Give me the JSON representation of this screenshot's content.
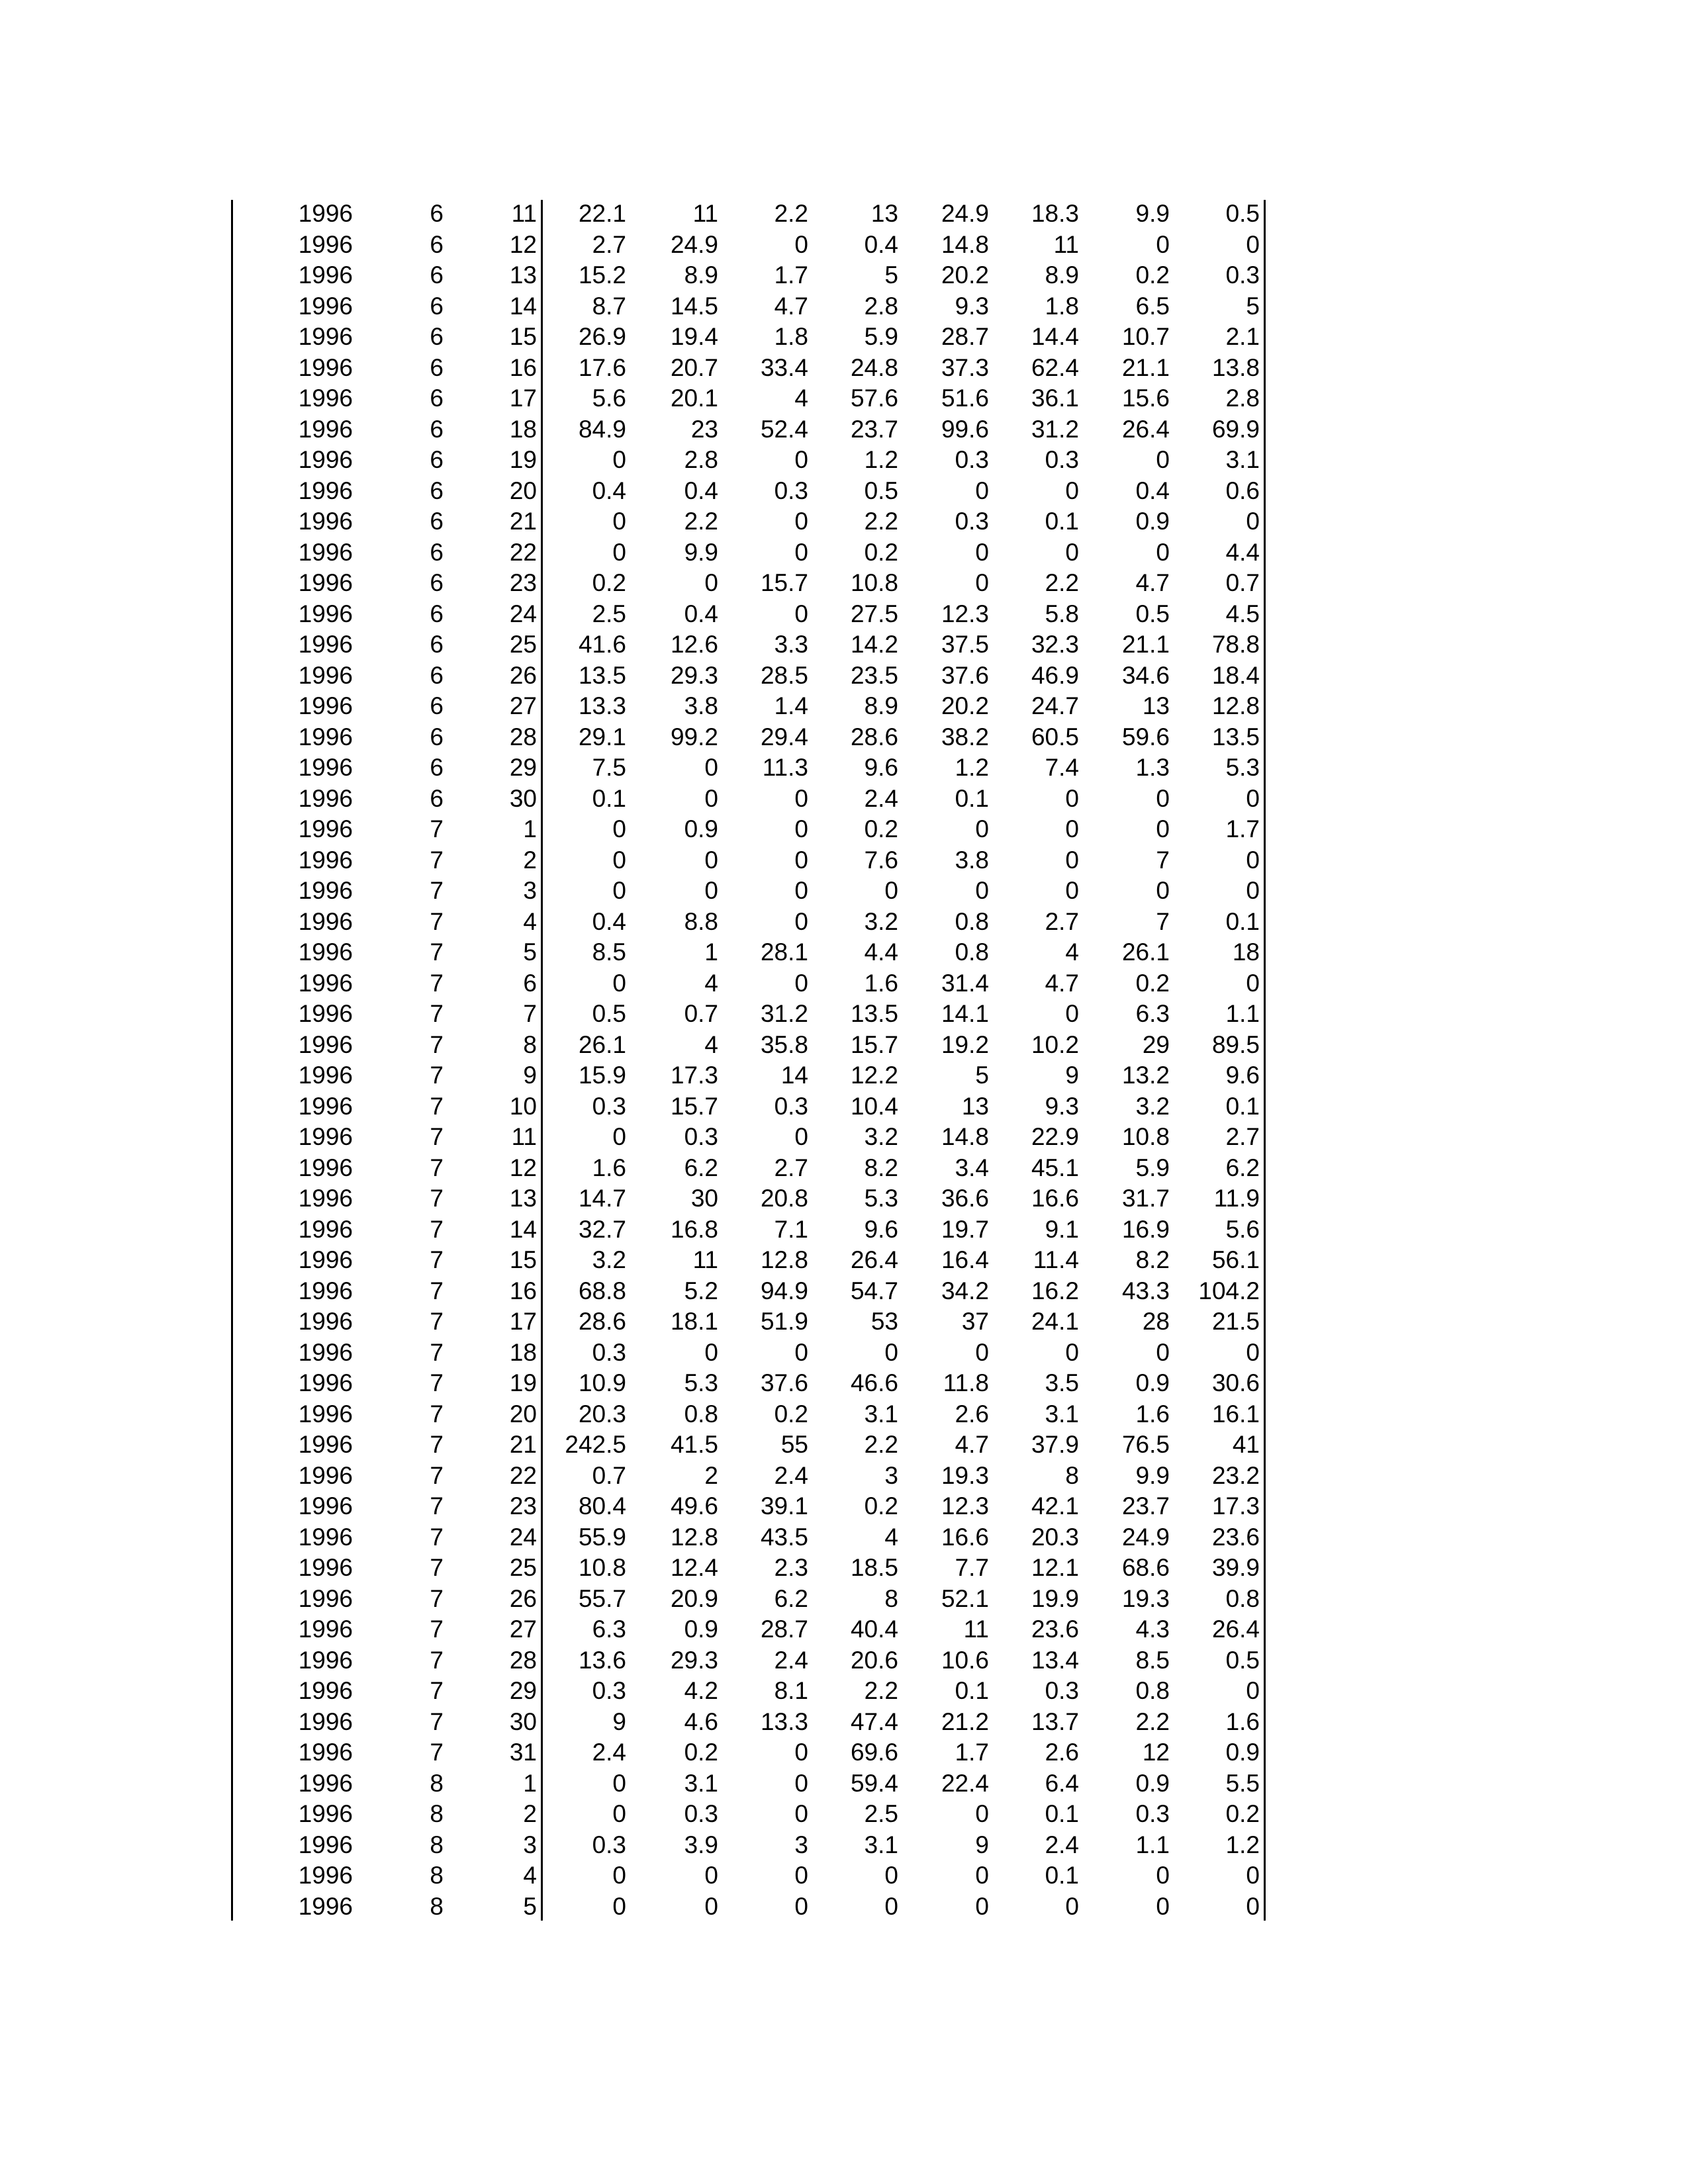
{
  "table": {
    "rows": [
      [
        "1996",
        "6",
        "11",
        "22.1",
        "11",
        "2.2",
        "13",
        "24.9",
        "18.3",
        "9.9",
        "0.5"
      ],
      [
        "1996",
        "6",
        "12",
        "2.7",
        "24.9",
        "0",
        "0.4",
        "14.8",
        "11",
        "0",
        "0"
      ],
      [
        "1996",
        "6",
        "13",
        "15.2",
        "8.9",
        "1.7",
        "5",
        "20.2",
        "8.9",
        "0.2",
        "0.3"
      ],
      [
        "1996",
        "6",
        "14",
        "8.7",
        "14.5",
        "4.7",
        "2.8",
        "9.3",
        "1.8",
        "6.5",
        "5"
      ],
      [
        "1996",
        "6",
        "15",
        "26.9",
        "19.4",
        "1.8",
        "5.9",
        "28.7",
        "14.4",
        "10.7",
        "2.1"
      ],
      [
        "1996",
        "6",
        "16",
        "17.6",
        "20.7",
        "33.4",
        "24.8",
        "37.3",
        "62.4",
        "21.1",
        "13.8"
      ],
      [
        "1996",
        "6",
        "17",
        "5.6",
        "20.1",
        "4",
        "57.6",
        "51.6",
        "36.1",
        "15.6",
        "2.8"
      ],
      [
        "1996",
        "6",
        "18",
        "84.9",
        "23",
        "52.4",
        "23.7",
        "99.6",
        "31.2",
        "26.4",
        "69.9"
      ],
      [
        "1996",
        "6",
        "19",
        "0",
        "2.8",
        "0",
        "1.2",
        "0.3",
        "0.3",
        "0",
        "3.1"
      ],
      [
        "1996",
        "6",
        "20",
        "0.4",
        "0.4",
        "0.3",
        "0.5",
        "0",
        "0",
        "0.4",
        "0.6"
      ],
      [
        "1996",
        "6",
        "21",
        "0",
        "2.2",
        "0",
        "2.2",
        "0.3",
        "0.1",
        "0.9",
        "0"
      ],
      [
        "1996",
        "6",
        "22",
        "0",
        "9.9",
        "0",
        "0.2",
        "0",
        "0",
        "0",
        "4.4"
      ],
      [
        "1996",
        "6",
        "23",
        "0.2",
        "0",
        "15.7",
        "10.8",
        "0",
        "2.2",
        "4.7",
        "0.7"
      ],
      [
        "1996",
        "6",
        "24",
        "2.5",
        "0.4",
        "0",
        "27.5",
        "12.3",
        "5.8",
        "0.5",
        "4.5"
      ],
      [
        "1996",
        "6",
        "25",
        "41.6",
        "12.6",
        "3.3",
        "14.2",
        "37.5",
        "32.3",
        "21.1",
        "78.8"
      ],
      [
        "1996",
        "6",
        "26",
        "13.5",
        "29.3",
        "28.5",
        "23.5",
        "37.6",
        "46.9",
        "34.6",
        "18.4"
      ],
      [
        "1996",
        "6",
        "27",
        "13.3",
        "3.8",
        "1.4",
        "8.9",
        "20.2",
        "24.7",
        "13",
        "12.8"
      ],
      [
        "1996",
        "6",
        "28",
        "29.1",
        "99.2",
        "29.4",
        "28.6",
        "38.2",
        "60.5",
        "59.6",
        "13.5"
      ],
      [
        "1996",
        "6",
        "29",
        "7.5",
        "0",
        "11.3",
        "9.6",
        "1.2",
        "7.4",
        "1.3",
        "5.3"
      ],
      [
        "1996",
        "6",
        "30",
        "0.1",
        "0",
        "0",
        "2.4",
        "0.1",
        "0",
        "0",
        "0"
      ],
      [
        "1996",
        "7",
        "1",
        "0",
        "0.9",
        "0",
        "0.2",
        "0",
        "0",
        "0",
        "1.7"
      ],
      [
        "1996",
        "7",
        "2",
        "0",
        "0",
        "0",
        "7.6",
        "3.8",
        "0",
        "7",
        "0"
      ],
      [
        "1996",
        "7",
        "3",
        "0",
        "0",
        "0",
        "0",
        "0",
        "0",
        "0",
        "0"
      ],
      [
        "1996",
        "7",
        "4",
        "0.4",
        "8.8",
        "0",
        "3.2",
        "0.8",
        "2.7",
        "7",
        "0.1"
      ],
      [
        "1996",
        "7",
        "5",
        "8.5",
        "1",
        "28.1",
        "4.4",
        "0.8",
        "4",
        "26.1",
        "18"
      ],
      [
        "1996",
        "7",
        "6",
        "0",
        "4",
        "0",
        "1.6",
        "31.4",
        "4.7",
        "0.2",
        "0"
      ],
      [
        "1996",
        "7",
        "7",
        "0.5",
        "0.7",
        "31.2",
        "13.5",
        "14.1",
        "0",
        "6.3",
        "1.1"
      ],
      [
        "1996",
        "7",
        "8",
        "26.1",
        "4",
        "35.8",
        "15.7",
        "19.2",
        "10.2",
        "29",
        "89.5"
      ],
      [
        "1996",
        "7",
        "9",
        "15.9",
        "17.3",
        "14",
        "12.2",
        "5",
        "9",
        "13.2",
        "9.6"
      ],
      [
        "1996",
        "7",
        "10",
        "0.3",
        "15.7",
        "0.3",
        "10.4",
        "13",
        "9.3",
        "3.2",
        "0.1"
      ],
      [
        "1996",
        "7",
        "11",
        "0",
        "0.3",
        "0",
        "3.2",
        "14.8",
        "22.9",
        "10.8",
        "2.7"
      ],
      [
        "1996",
        "7",
        "12",
        "1.6",
        "6.2",
        "2.7",
        "8.2",
        "3.4",
        "45.1",
        "5.9",
        "6.2"
      ],
      [
        "1996",
        "7",
        "13",
        "14.7",
        "30",
        "20.8",
        "5.3",
        "36.6",
        "16.6",
        "31.7",
        "11.9"
      ],
      [
        "1996",
        "7",
        "14",
        "32.7",
        "16.8",
        "7.1",
        "9.6",
        "19.7",
        "9.1",
        "16.9",
        "5.6"
      ],
      [
        "1996",
        "7",
        "15",
        "3.2",
        "11",
        "12.8",
        "26.4",
        "16.4",
        "11.4",
        "8.2",
        "56.1"
      ],
      [
        "1996",
        "7",
        "16",
        "68.8",
        "5.2",
        "94.9",
        "54.7",
        "34.2",
        "16.2",
        "43.3",
        "104.2"
      ],
      [
        "1996",
        "7",
        "17",
        "28.6",
        "18.1",
        "51.9",
        "53",
        "37",
        "24.1",
        "28",
        "21.5"
      ],
      [
        "1996",
        "7",
        "18",
        "0.3",
        "0",
        "0",
        "0",
        "0",
        "0",
        "0",
        "0"
      ],
      [
        "1996",
        "7",
        "19",
        "10.9",
        "5.3",
        "37.6",
        "46.6",
        "11.8",
        "3.5",
        "0.9",
        "30.6"
      ],
      [
        "1996",
        "7",
        "20",
        "20.3",
        "0.8",
        "0.2",
        "3.1",
        "2.6",
        "3.1",
        "1.6",
        "16.1"
      ],
      [
        "1996",
        "7",
        "21",
        "242.5",
        "41.5",
        "55",
        "2.2",
        "4.7",
        "37.9",
        "76.5",
        "41"
      ],
      [
        "1996",
        "7",
        "22",
        "0.7",
        "2",
        "2.4",
        "3",
        "19.3",
        "8",
        "9.9",
        "23.2"
      ],
      [
        "1996",
        "7",
        "23",
        "80.4",
        "49.6",
        "39.1",
        "0.2",
        "12.3",
        "42.1",
        "23.7",
        "17.3"
      ],
      [
        "1996",
        "7",
        "24",
        "55.9",
        "12.8",
        "43.5",
        "4",
        "16.6",
        "20.3",
        "24.9",
        "23.6"
      ],
      [
        "1996",
        "7",
        "25",
        "10.8",
        "12.4",
        "2.3",
        "18.5",
        "7.7",
        "12.1",
        "68.6",
        "39.9"
      ],
      [
        "1996",
        "7",
        "26",
        "55.7",
        "20.9",
        "6.2",
        "8",
        "52.1",
        "19.9",
        "19.3",
        "0.8"
      ],
      [
        "1996",
        "7",
        "27",
        "6.3",
        "0.9",
        "28.7",
        "40.4",
        "11",
        "23.6",
        "4.3",
        "26.4"
      ],
      [
        "1996",
        "7",
        "28",
        "13.6",
        "29.3",
        "2.4",
        "20.6",
        "10.6",
        "13.4",
        "8.5",
        "0.5"
      ],
      [
        "1996",
        "7",
        "29",
        "0.3",
        "4.2",
        "8.1",
        "2.2",
        "0.1",
        "0.3",
        "0.8",
        "0"
      ],
      [
        "1996",
        "7",
        "30",
        "9",
        "4.6",
        "13.3",
        "47.4",
        "21.2",
        "13.7",
        "2.2",
        "1.6"
      ],
      [
        "1996",
        "7",
        "31",
        "2.4",
        "0.2",
        "0",
        "69.6",
        "1.7",
        "2.6",
        "12",
        "0.9"
      ],
      [
        "1996",
        "8",
        "1",
        "0",
        "3.1",
        "0",
        "59.4",
        "22.4",
        "6.4",
        "0.9",
        "5.5"
      ],
      [
        "1996",
        "8",
        "2",
        "0",
        "0.3",
        "0",
        "2.5",
        "0",
        "0.1",
        "0.3",
        "0.2"
      ],
      [
        "1996",
        "8",
        "3",
        "0.3",
        "3.9",
        "3",
        "3.1",
        "9",
        "2.4",
        "1.1",
        "1.2"
      ],
      [
        "1996",
        "8",
        "4",
        "0",
        "0",
        "0",
        "0",
        "0",
        "0.1",
        "0",
        "0"
      ],
      [
        "1996",
        "8",
        "5",
        "0",
        "0",
        "0",
        "0",
        "0",
        "0",
        "0",
        "0"
      ]
    ]
  }
}
